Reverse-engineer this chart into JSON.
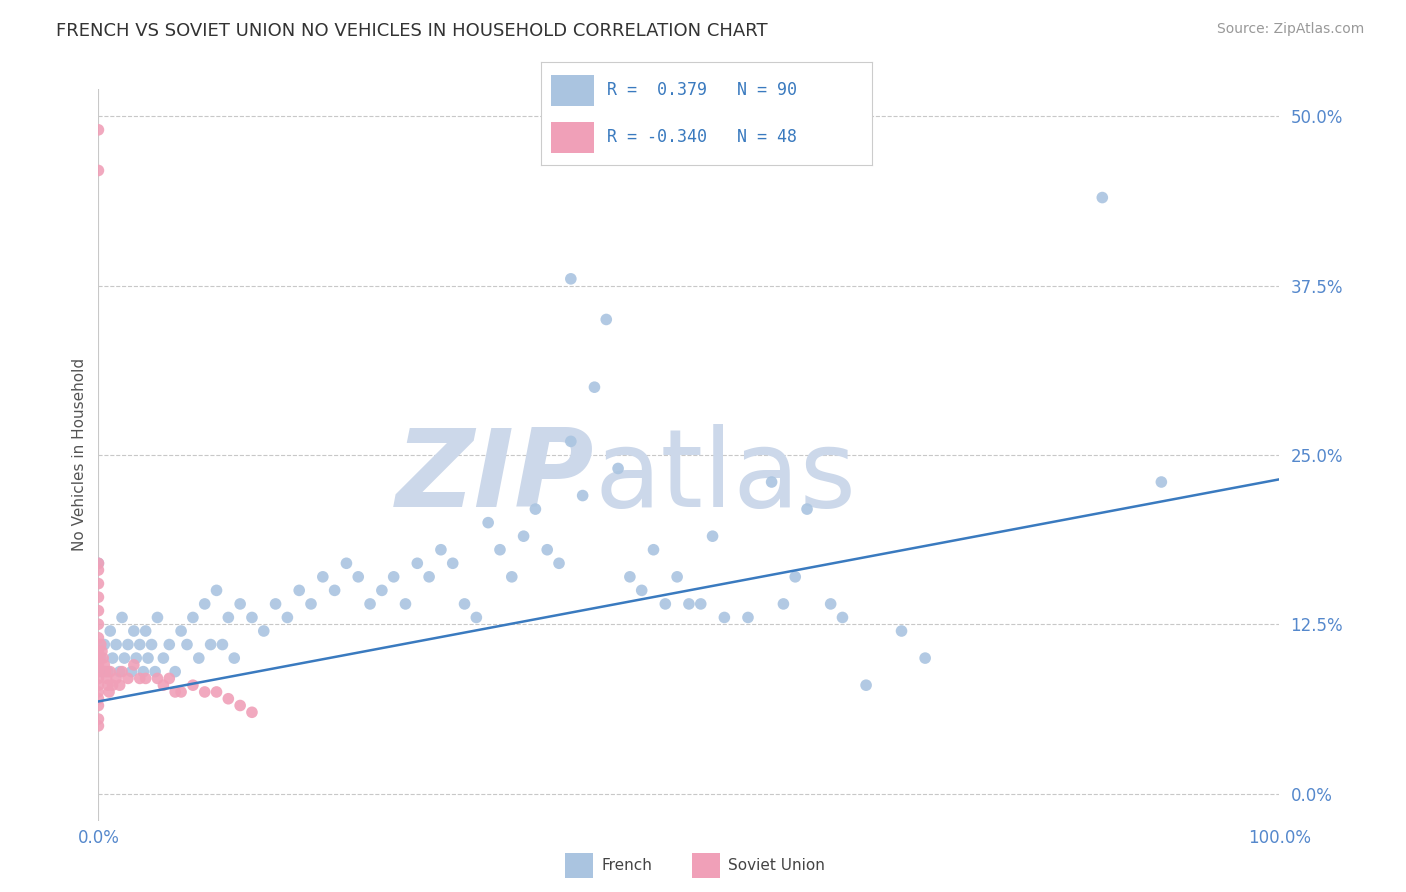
{
  "title": "FRENCH VS SOVIET UNION NO VEHICLES IN HOUSEHOLD CORRELATION CHART",
  "source": "Source: ZipAtlas.com",
  "ylabel": "No Vehicles in Household",
  "xlim": [
    0.0,
    1.0
  ],
  "ylim": [
    -0.02,
    0.52
  ],
  "yticks": [
    0.0,
    0.125,
    0.25,
    0.375,
    0.5
  ],
  "ytick_labels": [
    "0.0%",
    "12.5%",
    "25.0%",
    "37.5%",
    "50.0%"
  ],
  "xtick_labels": [
    "0.0%",
    "100.0%"
  ],
  "french_R": 0.379,
  "french_N": 90,
  "soviet_R": -0.34,
  "soviet_N": 48,
  "french_color": "#aac4e0",
  "soviet_color": "#f0a0b8",
  "french_line_color": "#3a7abf",
  "tick_color": "#5588cc",
  "background_color": "#ffffff",
  "grid_color": "#c8c8c8",
  "title_color": "#333333",
  "watermark_zip_color": "#ccd8ea",
  "watermark_atlas_color": "#ccd8ea",
  "legend_R_color": "#3a7abf",
  "legend_border_color": "#cccccc",
  "french_scatter_x": [
    0.0,
    0.002,
    0.003,
    0.005,
    0.008,
    0.01,
    0.012,
    0.015,
    0.018,
    0.02,
    0.022,
    0.025,
    0.028,
    0.03,
    0.032,
    0.035,
    0.038,
    0.04,
    0.042,
    0.045,
    0.048,
    0.05,
    0.055,
    0.06,
    0.065,
    0.07,
    0.075,
    0.08,
    0.085,
    0.09,
    0.095,
    0.1,
    0.105,
    0.11,
    0.115,
    0.12,
    0.13,
    0.14,
    0.15,
    0.16,
    0.17,
    0.18,
    0.19,
    0.2,
    0.21,
    0.22,
    0.23,
    0.24,
    0.25,
    0.26,
    0.27,
    0.28,
    0.29,
    0.3,
    0.31,
    0.32,
    0.33,
    0.34,
    0.35,
    0.36,
    0.37,
    0.38,
    0.39,
    0.4,
    0.4,
    0.41,
    0.42,
    0.43,
    0.44,
    0.45,
    0.46,
    0.47,
    0.48,
    0.49,
    0.5,
    0.51,
    0.52,
    0.53,
    0.55,
    0.57,
    0.58,
    0.59,
    0.6,
    0.62,
    0.63,
    0.65,
    0.68,
    0.7,
    0.85,
    0.9
  ],
  "french_scatter_y": [
    0.17,
    0.1,
    0.09,
    0.11,
    0.09,
    0.12,
    0.1,
    0.11,
    0.09,
    0.13,
    0.1,
    0.11,
    0.09,
    0.12,
    0.1,
    0.11,
    0.09,
    0.12,
    0.1,
    0.11,
    0.09,
    0.13,
    0.1,
    0.11,
    0.09,
    0.12,
    0.11,
    0.13,
    0.1,
    0.14,
    0.11,
    0.15,
    0.11,
    0.13,
    0.1,
    0.14,
    0.13,
    0.12,
    0.14,
    0.13,
    0.15,
    0.14,
    0.16,
    0.15,
    0.17,
    0.16,
    0.14,
    0.15,
    0.16,
    0.14,
    0.17,
    0.16,
    0.18,
    0.17,
    0.14,
    0.13,
    0.2,
    0.18,
    0.16,
    0.19,
    0.21,
    0.18,
    0.17,
    0.38,
    0.26,
    0.22,
    0.3,
    0.35,
    0.24,
    0.16,
    0.15,
    0.18,
    0.14,
    0.16,
    0.14,
    0.14,
    0.19,
    0.13,
    0.13,
    0.23,
    0.14,
    0.16,
    0.21,
    0.14,
    0.13,
    0.08,
    0.12,
    0.1,
    0.44,
    0.23
  ],
  "soviet_scatter_x": [
    0.0,
    0.0,
    0.0,
    0.0,
    0.0,
    0.0,
    0.0,
    0.0,
    0.0,
    0.0,
    0.0,
    0.0,
    0.0,
    0.0,
    0.0,
    0.0,
    0.0,
    0.0,
    0.0,
    0.0,
    0.002,
    0.003,
    0.004,
    0.005,
    0.006,
    0.007,
    0.008,
    0.009,
    0.01,
    0.012,
    0.015,
    0.018,
    0.02,
    0.025,
    0.03,
    0.035,
    0.04,
    0.05,
    0.055,
    0.06,
    0.065,
    0.07,
    0.08,
    0.09,
    0.1,
    0.11,
    0.12,
    0.13
  ],
  "soviet_scatter_y": [
    0.49,
    0.46,
    0.17,
    0.165,
    0.155,
    0.145,
    0.135,
    0.125,
    0.115,
    0.105,
    0.1,
    0.095,
    0.09,
    0.085,
    0.08,
    0.075,
    0.07,
    0.065,
    0.055,
    0.05,
    0.11,
    0.105,
    0.1,
    0.095,
    0.09,
    0.085,
    0.08,
    0.075,
    0.09,
    0.08,
    0.085,
    0.08,
    0.09,
    0.085,
    0.095,
    0.085,
    0.085,
    0.085,
    0.08,
    0.085,
    0.075,
    0.075,
    0.08,
    0.075,
    0.075,
    0.07,
    0.065,
    0.06
  ],
  "reg_line_x": [
    0.0,
    1.0
  ],
  "reg_line_y": [
    0.068,
    0.232
  ]
}
